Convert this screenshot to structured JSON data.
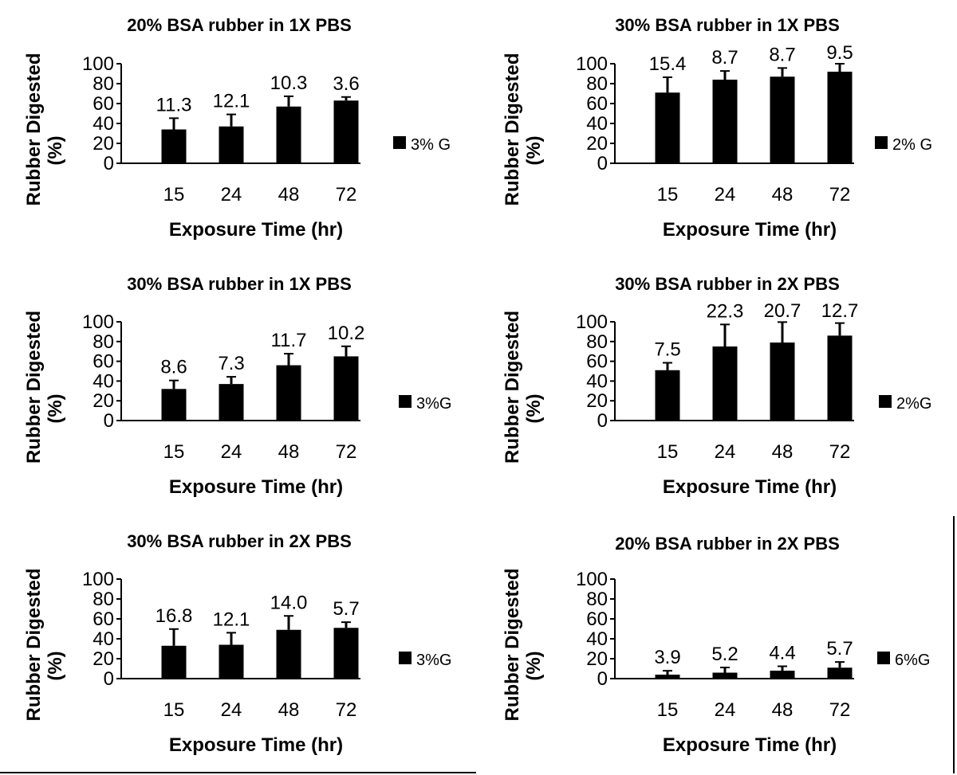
{
  "chart_data": [
    {
      "type": "bar",
      "title": "20% BSA rubber in 1X PBS",
      "xlabel": "Exposure Time (hr)",
      "ylabel_line1": "Rubber Digested",
      "ylabel_line2": "(%)",
      "categories": [
        "15",
        "24",
        "48",
        "72"
      ],
      "ylim": [
        0,
        100
      ],
      "yticks": [
        "0",
        "20",
        "40",
        "60",
        "80",
        "100"
      ],
      "series": [
        {
          "name": "3% G",
          "values": [
            34,
            37,
            57,
            63
          ],
          "errors": [
            11.3,
            12.1,
            10.3,
            3.6
          ]
        }
      ],
      "data_labels": [
        "11.3",
        "12.1",
        "10.3",
        "3.6"
      ],
      "legend": "right"
    },
    {
      "type": "bar",
      "title": "30% BSA rubber in 1X PBS",
      "xlabel": "Exposure Time (hr)",
      "ylabel_line1": "Rubber Digested",
      "ylabel_line2": "(%)",
      "categories": [
        "15",
        "24",
        "48",
        "72"
      ],
      "ylim": [
        0,
        100
      ],
      "yticks": [
        "0",
        "20",
        "40",
        "60",
        "80",
        "100"
      ],
      "series": [
        {
          "name": "2% G",
          "values": [
            71,
            84,
            87,
            92
          ],
          "errors": [
            15.4,
            8.7,
            8.7,
            9.5
          ]
        }
      ],
      "data_labels": [
        "15.4",
        "8.7",
        "8.7",
        "9.5"
      ],
      "legend": "right"
    },
    {
      "type": "bar",
      "title": "30% BSA rubber in 1X PBS",
      "xlabel": "Exposure Time (hr)",
      "ylabel_line1": "Rubber Digested",
      "ylabel_line2": "(%)",
      "categories": [
        "15",
        "24",
        "48",
        "72"
      ],
      "ylim": [
        0,
        100
      ],
      "yticks": [
        "0",
        "20",
        "40",
        "60",
        "80",
        "100"
      ],
      "series": [
        {
          "name": "3%G",
          "values": [
            32,
            37,
            56,
            65
          ],
          "errors": [
            8.6,
            7.3,
            11.7,
            10.2
          ]
        }
      ],
      "data_labels": [
        "8.6",
        "7.3",
        "11.7",
        "10.2"
      ],
      "legend": "right"
    },
    {
      "type": "bar",
      "title": "30% BSA rubber in 2X PBS",
      "xlabel": "Exposure Time (hr)",
      "ylabel_line1": "Rubber Digested",
      "ylabel_line2": "(%)",
      "categories": [
        "15",
        "24",
        "48",
        "72"
      ],
      "ylim": [
        0,
        100
      ],
      "yticks": [
        "0",
        "20",
        "40",
        "60",
        "80",
        "100"
      ],
      "series": [
        {
          "name": "2%G",
          "values": [
            51,
            75,
            79,
            86
          ],
          "errors": [
            7.5,
            22.3,
            20.7,
            12.7
          ]
        }
      ],
      "data_labels": [
        "7.5",
        "22.3",
        "20.7",
        "12.7"
      ],
      "legend": "right"
    },
    {
      "type": "bar",
      "title": "30% BSA rubber in 2X PBS",
      "xlabel": "Exposure Time (hr)",
      "ylabel_line1": "Rubber Digested",
      "ylabel_line2": "(%)",
      "categories": [
        "15",
        "24",
        "48",
        "72"
      ],
      "ylim": [
        0,
        100
      ],
      "yticks": [
        "0",
        "20",
        "40",
        "60",
        "80",
        "100"
      ],
      "series": [
        {
          "name": "3%G",
          "values": [
            33,
            34,
            49,
            51
          ],
          "errors": [
            16.8,
            12.1,
            14.0,
            5.7
          ]
        }
      ],
      "data_labels": [
        "16.8",
        "12.1",
        "14.0",
        "5.7"
      ],
      "legend": "right"
    },
    {
      "type": "bar",
      "title": "20% BSA rubber in 2X PBS",
      "xlabel": "Exposure Time (hr)",
      "ylabel_line1": "Rubber Digested",
      "ylabel_line2": "(%)",
      "categories": [
        "15",
        "24",
        "48",
        "72"
      ],
      "ylim": [
        0,
        100
      ],
      "yticks": [
        "0",
        "20",
        "40",
        "60",
        "80",
        "100"
      ],
      "series": [
        {
          "name": "6%G",
          "values": [
            4,
            6,
            8,
            11
          ],
          "errors": [
            3.9,
            5.2,
            4.4,
            5.7
          ]
        }
      ],
      "data_labels": [
        "3.9",
        "5.2",
        "4.4",
        "5.7"
      ],
      "legend": "right"
    }
  ],
  "colors": {
    "bar": "#000000",
    "axis": "#000000",
    "background": "#ffffff"
  }
}
